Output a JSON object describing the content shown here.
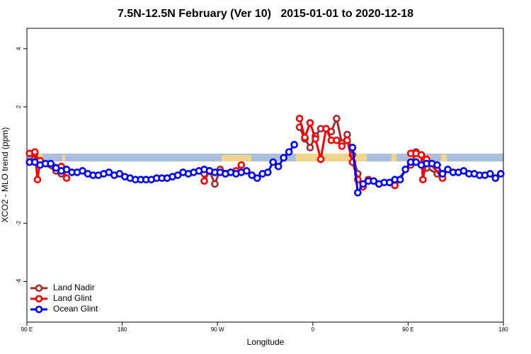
{
  "chart_data": {
    "type": "line",
    "title": "7.5N-12.5N February (Ver 10)   2015-01-01 to 2020-12-18",
    "xlabel": "Longitude",
    "ylabel": "XCO2 - MLO trend (ppm)",
    "xlim": [
      90,
      540
    ],
    "xticks": [
      {
        "value": 90,
        "label": "90 E"
      },
      180,
      {
        "value": 270,
        "label": "90 W"
      },
      {
        "value": 360,
        "label": "0"
      },
      {
        "value": 450,
        "label": "90 E"
      },
      {
        "value": 540,
        "label": "180"
      }
    ],
    "ylim": [
      -5.4,
      4.7
    ],
    "yticks": [
      -4,
      -2,
      2,
      4
    ],
    "legend": "bottomleft",
    "series": [
      {
        "name": "Land Nadir",
        "color": "#a52a2a",
        "x": [
          92.5,
          97.5,
          102.5,
          117.5,
          122.5,
          190,
          257.5,
          262.5,
          267.5,
          272.5,
          277.5,
          310,
          347.5,
          352.5,
          357.5,
          362.5,
          367.5,
          372.5,
          377.5,
          382.5,
          387.5,
          392.5,
          397.5,
          402.5,
          420,
          437.5,
          452.5,
          457.5,
          462.5,
          467.5,
          477.5
        ],
        "values": [
          0.1,
          0.4,
          0.1,
          -0.2,
          -0.3,
          null,
          -0.3,
          -0.2,
          -0.65,
          -0.15,
          -0.3,
          null,
          1.3,
          0.9,
          0.6,
          1.0,
          1.25,
          1.25,
          1.15,
          1.6,
          0.75,
          1.05,
          0.35,
          -0.3,
          null,
          -0.6,
          0.0,
          0.45,
          0.35,
          -0.1,
          -0.3
        ]
      },
      {
        "name": "Land Glint",
        "color": "#ff0000",
        "x": [
          92.5,
          97.5,
          100,
          102.5,
          122.5,
          127.5,
          190,
          257.5,
          262.5,
          287.5,
          292.5,
          320,
          347.5,
          352.5,
          357.5,
          362.5,
          367.5,
          372.5,
          377.5,
          382.5,
          387.5,
          392.5,
          397.5,
          402.5,
          407.5,
          412.5,
          420,
          437.5,
          445,
          452.5,
          457.5,
          462.5,
          464,
          467.5,
          482.5
        ],
        "values": [
          0.4,
          0.45,
          -0.5,
          0.15,
          -0.05,
          -0.45,
          null,
          -0.55,
          -0.2,
          -0.2,
          0.0,
          null,
          1.6,
          0.95,
          1.45,
          0.9,
          0.2,
          1.25,
          0.85,
          0.85,
          0.65,
          0.85,
          0.1,
          -0.5,
          -0.75,
          -0.5,
          null,
          -0.7,
          null,
          0.4,
          0.4,
          0.35,
          -0.5,
          0.2,
          -0.45
        ]
      },
      {
        "name": "Ocean Glint",
        "color": "#0000ff",
        "x": [
          92.5,
          97.5,
          102.5,
          107.5,
          112.5,
          117.5,
          122.5,
          127.5,
          132.5,
          137.5,
          142.5,
          147.5,
          152.5,
          157.5,
          162.5,
          167.5,
          172.5,
          177.5,
          182.5,
          187.5,
          192.5,
          197.5,
          202.5,
          207.5,
          212.5,
          217.5,
          222.5,
          227.5,
          232.5,
          237.5,
          242.5,
          247.5,
          252.5,
          257.5,
          262.5,
          267.5,
          272.5,
          277.5,
          282.5,
          287.5,
          292.5,
          297.5,
          302.5,
          307.5,
          312.5,
          317.5,
          322.5,
          327.5,
          332.5,
          337.5,
          342.5,
          347.5,
          397.5,
          402.5,
          407.5,
          412.5,
          417.5,
          422.5,
          427.5,
          432.5,
          437.5,
          442.5,
          447.5,
          452.5,
          457.5,
          462.5,
          467.5,
          472.5,
          477.5,
          482.5,
          487.5,
          492.5,
          497.5,
          502.5,
          507.5,
          512.5,
          517.5,
          522.5,
          527.5,
          532.5,
          537.5
        ],
        "values": [
          0.1,
          0.1,
          0.0,
          0.05,
          0.05,
          -0.1,
          -0.2,
          -0.15,
          -0.25,
          -0.25,
          -0.2,
          -0.3,
          -0.35,
          -0.35,
          -0.3,
          -0.25,
          -0.35,
          -0.3,
          -0.4,
          -0.45,
          -0.5,
          -0.5,
          -0.5,
          -0.5,
          -0.45,
          -0.45,
          -0.45,
          -0.4,
          -0.35,
          -0.25,
          -0.3,
          -0.25,
          -0.2,
          -0.15,
          -0.2,
          -0.25,
          -0.25,
          -0.3,
          -0.25,
          -0.3,
          -0.25,
          -0.2,
          -0.35,
          -0.45,
          -0.3,
          -0.25,
          0.1,
          -0.05,
          0.25,
          0.45,
          0.7,
          null,
          0.6,
          -0.95,
          -0.65,
          -0.55,
          -0.55,
          -0.65,
          -0.6,
          -0.6,
          -0.5,
          -0.5,
          -0.15,
          0.1,
          0.1,
          0.0,
          0.05,
          0.05,
          0.0,
          -0.3,
          -0.15,
          -0.25,
          -0.25,
          -0.2,
          -0.3,
          -0.3,
          -0.35,
          -0.35,
          -0.3,
          -0.45,
          -0.3
        ]
      }
    ]
  }
}
